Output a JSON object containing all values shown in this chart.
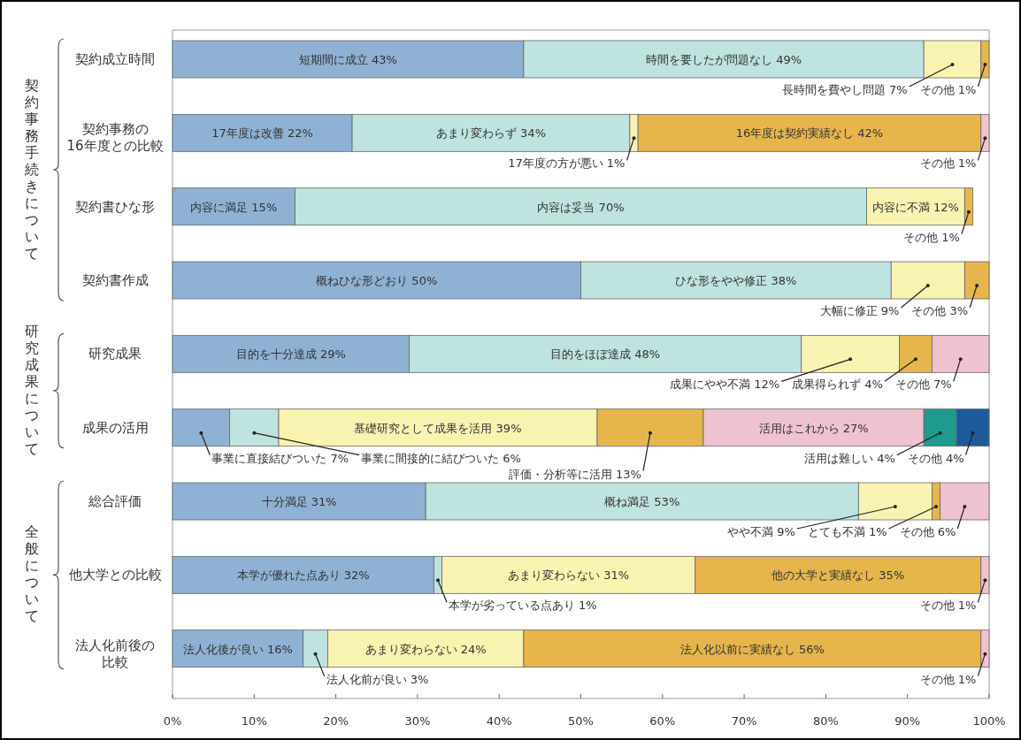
{
  "chart_data": {
    "type": "bar",
    "orientation": "horizontal",
    "stacked": true,
    "categories": [
      "契約成立時間",
      "契約事務の16年度との比較",
      "契約書ひな形",
      "契約書作成",
      "研究成果",
      "成果の活用",
      "総合評価",
      "他大学との比較",
      "法人化前後の比較"
    ],
    "series": [
      {
        "color": "#8fb1d4",
        "values": [
          43,
          22,
          15,
          50,
          29,
          7,
          31,
          32,
          16
        ],
        "value_labels": [
          "短期間に成立 43%",
          "17年度は改善 22%",
          "内容に満足 15%",
          "概ねひな形どおり 50%",
          "目的を十分達成 29%",
          "事業に直接結びついた 7%",
          "十分満足 31%",
          "本学が優れた点あり 32%",
          "法人化後が良い 16%"
        ]
      },
      {
        "color": "#bfe3df",
        "values": [
          49,
          34,
          70,
          38,
          48,
          6,
          53,
          1,
          3
        ],
        "value_labels": [
          "時間を要したが問題なし 49%",
          "あまり変わらず 34%",
          "内容は妥当 70%",
          "ひな形をやや修正 38%",
          "目的をほぼ達成 48%",
          "事業に間接的に結びついた 6%",
          "概ね満足 53%",
          "本学が劣っている点あり 1%",
          "法人化前が良い 3%"
        ]
      },
      {
        "color": "#f8f3b0",
        "values": [
          7,
          1,
          12,
          9,
          12,
          39,
          9,
          31,
          24
        ],
        "value_labels": [
          "長時間を費やし問題 7%",
          "17年度の方が悪い 1%",
          "内容に不満 12%",
          "大幅に修正 9%",
          "成果にやや不満 12%",
          "基礎研究として成果を活用 39%",
          "やや不満 9%",
          "あまり変わらない 31%",
          "あまり変わらない 24%"
        ]
      },
      {
        "color": "#e6b54c",
        "values": [
          1,
          42,
          1,
          3,
          4,
          13,
          1,
          35,
          56
        ],
        "value_labels": [
          "その他 1%",
          "16年度は契約実績なし 42%",
          "その他 1%",
          "その他 3%",
          "成果得られず 4%",
          "評価・分析等に活用 13%",
          "とても不満 1%",
          "他の大学と実績なし 35%",
          "法人化以前に実績なし 56%"
        ]
      },
      {
        "color": "#eec3cf",
        "values": [
          null,
          1,
          null,
          null,
          7,
          27,
          6,
          1,
          1
        ],
        "value_labels": [
          null,
          "その他 1%",
          null,
          null,
          "その他 7%",
          "活用はこれから 27%",
          "その他 6%",
          "その他 1%",
          "その他 1%"
        ]
      },
      {
        "color": "#1f9a8e",
        "values": [
          null,
          null,
          null,
          null,
          null,
          4,
          null,
          null,
          null
        ],
        "value_labels": [
          null,
          null,
          null,
          null,
          null,
          "活用は難しい 4%",
          null,
          null,
          null
        ]
      },
      {
        "color": "#1d5a9c",
        "values": [
          null,
          null,
          null,
          null,
          null,
          4,
          null,
          null,
          null
        ],
        "value_labels": [
          null,
          null,
          null,
          null,
          null,
          "その他 4%",
          null,
          null,
          null
        ]
      }
    ],
    "xlim": [
      0,
      100
    ],
    "xticks": [
      {
        "value": 0,
        "label": "0%"
      },
      {
        "value": 10,
        "label": "10%"
      },
      {
        "value": 20,
        "label": "20%"
      },
      {
        "value": 30,
        "label": "30%"
      },
      {
        "value": 40,
        "label": "40%"
      },
      {
        "value": 50,
        "label": "50%"
      },
      {
        "value": 60,
        "label": "60%"
      },
      {
        "value": 70,
        "label": "70%"
      },
      {
        "value": 80,
        "label": "80%"
      },
      {
        "value": 90,
        "label": "90%"
      },
      {
        "value": 100,
        "label": "100%"
      }
    ],
    "annotations": [
      "契約事務手続きについて",
      "研究成果について",
      "全般について"
    ]
  }
}
